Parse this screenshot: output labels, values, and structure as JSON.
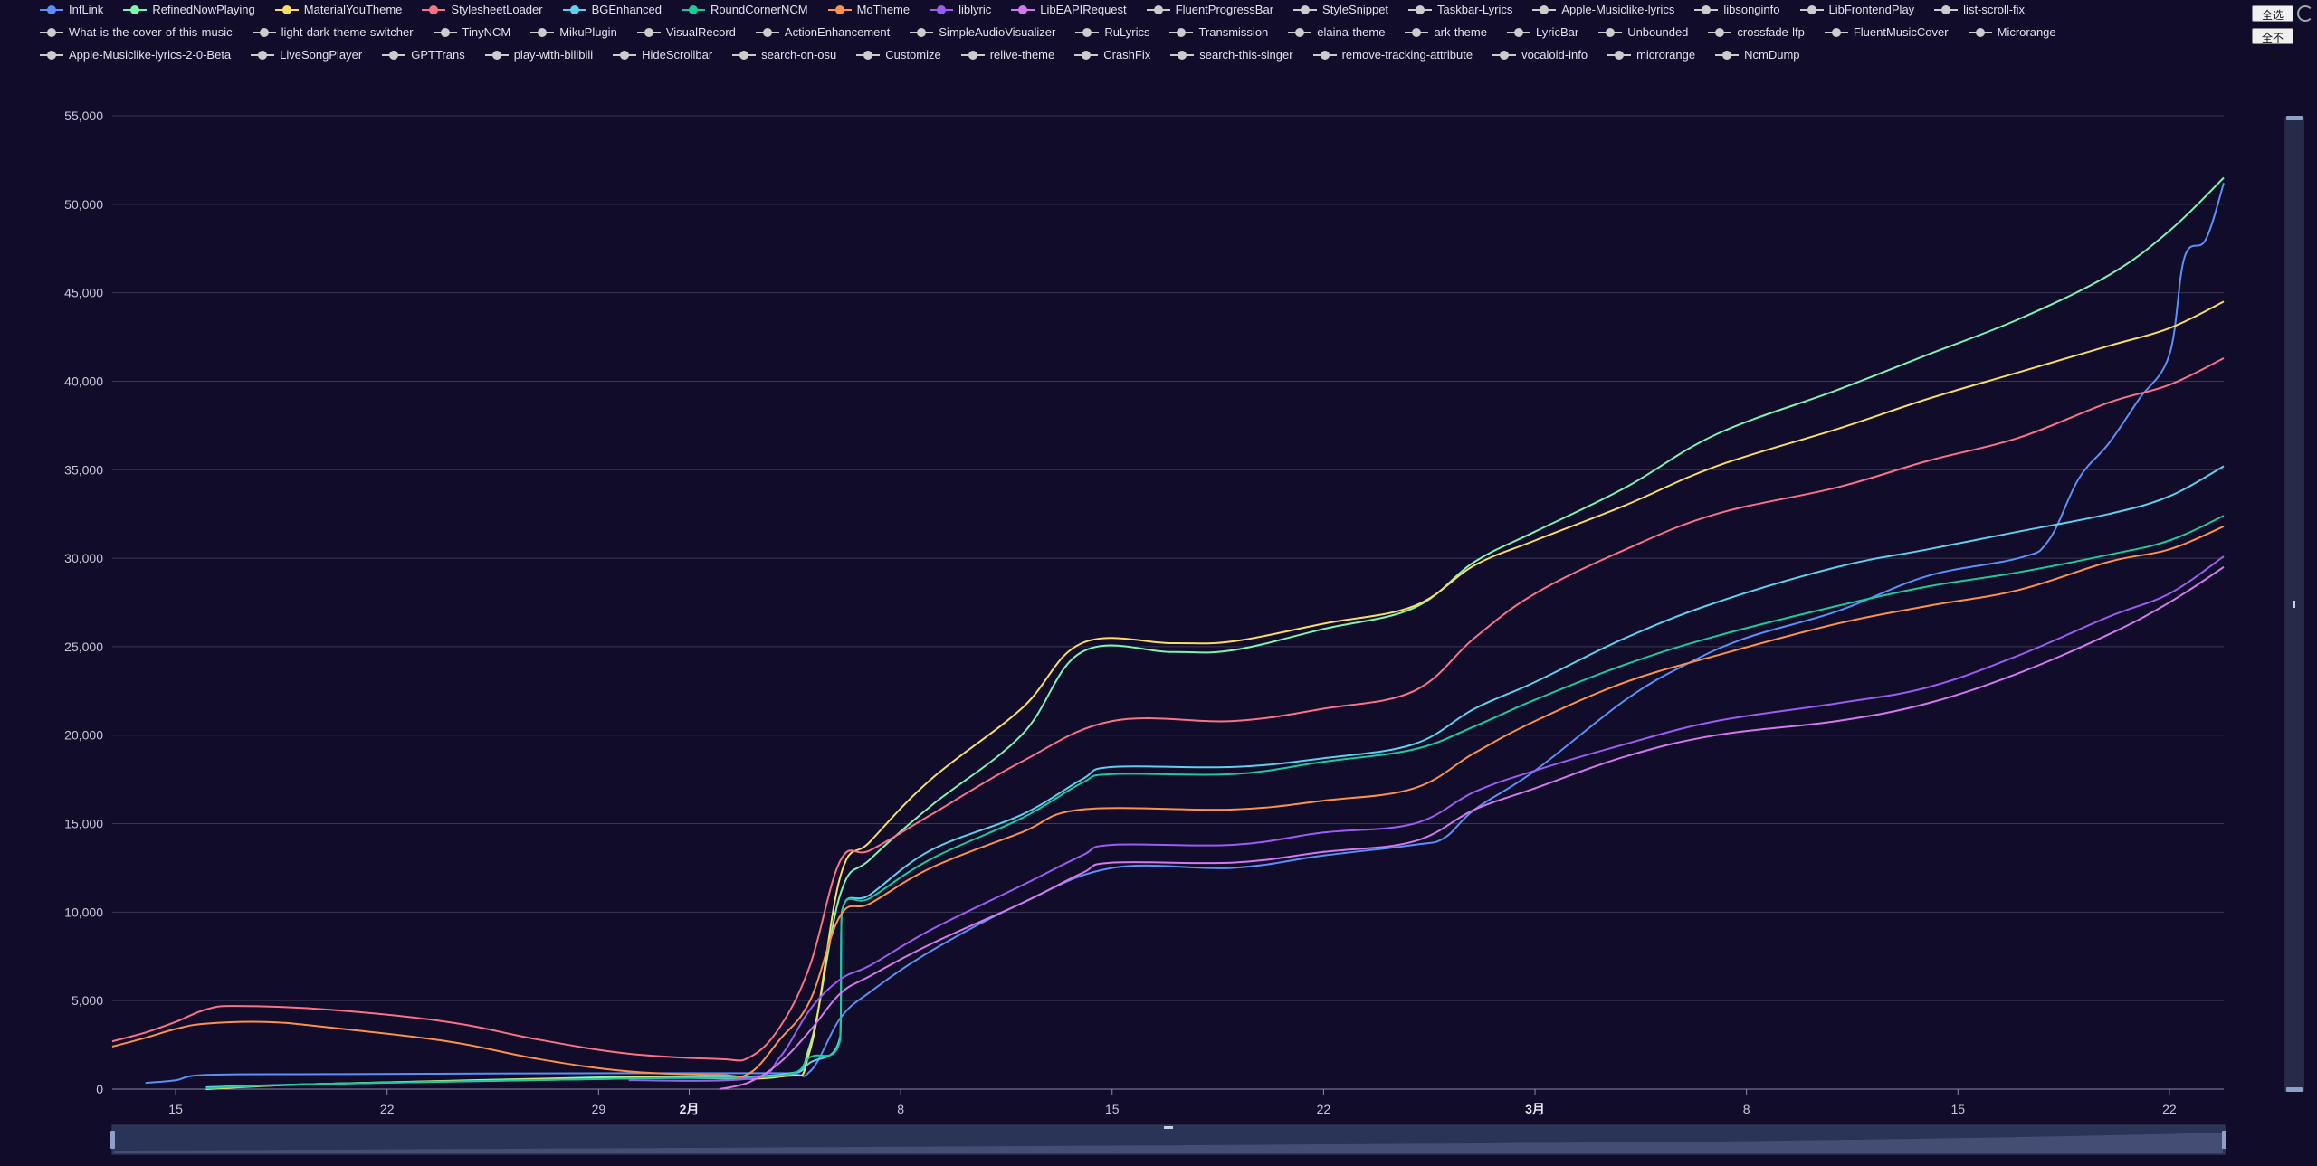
{
  "controls": {
    "select_all": "全选",
    "select_none": "全不选"
  },
  "legend": [
    {
      "name": "InfLink",
      "color": "#5b8ff9"
    },
    {
      "name": "RefinedNowPlaying",
      "color": "#7ef4b0"
    },
    {
      "name": "MaterialYouTheme",
      "color": "#f8dc65"
    },
    {
      "name": "StylesheetLoader",
      "color": "#fb7185"
    },
    {
      "name": "BGEnhanced",
      "color": "#60cfee"
    },
    {
      "name": "RoundCornerNCM",
      "color": "#1ec99b"
    },
    {
      "name": "MoTheme",
      "color": "#fd9149"
    },
    {
      "name": "liblyric",
      "color": "#9b5cf2"
    },
    {
      "name": "LibEAPIRequest",
      "color": "#d478f0"
    },
    {
      "name": "FluentProgressBar",
      "color": "#cccccc"
    },
    {
      "name": "StyleSnippet",
      "color": "#cccccc"
    },
    {
      "name": "Taskbar-Lyrics",
      "color": "#cccccc"
    },
    {
      "name": "Apple-Musiclike-lyrics",
      "color": "#cccccc"
    },
    {
      "name": "libsonginfo",
      "color": "#cccccc"
    },
    {
      "name": "LibFrontendPlay",
      "color": "#cccccc"
    },
    {
      "name": "list-scroll-fix",
      "color": "#cccccc"
    },
    {
      "name": "What-is-the-cover-of-this-music",
      "color": "#cccccc"
    },
    {
      "name": "light-dark-theme-switcher",
      "color": "#cccccc"
    },
    {
      "name": "TinyNCM",
      "color": "#cccccc"
    },
    {
      "name": "MikuPlugin",
      "color": "#cccccc"
    },
    {
      "name": "VisualRecord",
      "color": "#cccccc"
    },
    {
      "name": "ActionEnhancement",
      "color": "#cccccc"
    },
    {
      "name": "SimpleAudioVisualizer",
      "color": "#cccccc"
    },
    {
      "name": "RuLyrics",
      "color": "#cccccc"
    },
    {
      "name": "Transmission",
      "color": "#cccccc"
    },
    {
      "name": "elaina-theme",
      "color": "#cccccc"
    },
    {
      "name": "ark-theme",
      "color": "#cccccc"
    },
    {
      "name": "LyricBar",
      "color": "#cccccc"
    },
    {
      "name": "Unbounded",
      "color": "#cccccc"
    },
    {
      "name": "crossfade-lfp",
      "color": "#cccccc"
    },
    {
      "name": "FluentMusicCover",
      "color": "#cccccc"
    },
    {
      "name": "Microrange",
      "color": "#cccccc"
    },
    {
      "name": "Apple-Musiclike-lyrics-2-0-Beta",
      "color": "#cccccc"
    },
    {
      "name": "LiveSongPlayer",
      "color": "#cccccc"
    },
    {
      "name": "GPTTrans",
      "color": "#cccccc"
    },
    {
      "name": "play-with-bilibili",
      "color": "#cccccc"
    },
    {
      "name": "HideScrollbar",
      "color": "#cccccc"
    },
    {
      "name": "search-on-osu",
      "color": "#cccccc"
    },
    {
      "name": "Customize",
      "color": "#cccccc"
    },
    {
      "name": "relive-theme",
      "color": "#cccccc"
    },
    {
      "name": "CrashFix",
      "color": "#cccccc"
    },
    {
      "name": "search-this-singer",
      "color": "#cccccc"
    },
    {
      "name": "remove-tracking-attribute",
      "color": "#cccccc"
    },
    {
      "name": "vocaloid-info",
      "color": "#cccccc"
    },
    {
      "name": "microrange",
      "color": "#cccccc"
    },
    {
      "name": "NcmDump",
      "color": "#cccccc"
    }
  ],
  "chart_data": {
    "type": "line",
    "title": "",
    "xlabel": "",
    "ylabel": "",
    "x_ticks": [
      {
        "label": "15",
        "day": 15,
        "bold": false
      },
      {
        "label": "22",
        "day": 22,
        "bold": false
      },
      {
        "label": "29",
        "day": 29,
        "bold": false
      },
      {
        "label": "2月",
        "day": 32,
        "bold": true
      },
      {
        "label": "8",
        "day": 39,
        "bold": false
      },
      {
        "label": "15",
        "day": 46,
        "bold": false
      },
      {
        "label": "22",
        "day": 53,
        "bold": false
      },
      {
        "label": "3月",
        "day": 60,
        "bold": true
      },
      {
        "label": "8",
        "day": 67,
        "bold": false
      },
      {
        "label": "15",
        "day": 74,
        "bold": false
      },
      {
        "label": "22",
        "day": 81,
        "bold": false
      }
    ],
    "xlim": [
      12.9,
      82.8
    ],
    "ylim": [
      0,
      55000
    ],
    "y_ticks": [
      "0",
      "5,000",
      "10,000",
      "15,000",
      "20,000",
      "25,000",
      "30,000",
      "35,000",
      "40,000",
      "45,000",
      "50,000",
      "55,000"
    ],
    "grid": true,
    "legend_position": "top",
    "series": [
      {
        "name": "InfLink",
        "color": "#5b8ff9",
        "points": [
          [
            14,
            350
          ],
          [
            15,
            500
          ],
          [
            16,
            800
          ],
          [
            20,
            850
          ],
          [
            30,
            900
          ],
          [
            35,
            900
          ],
          [
            36,
            1000
          ],
          [
            37,
            4000
          ],
          [
            38,
            5500
          ],
          [
            40,
            7800
          ],
          [
            43,
            10500
          ],
          [
            46,
            12500
          ],
          [
            50,
            12500
          ],
          [
            53,
            13200
          ],
          [
            56,
            13800
          ],
          [
            57,
            14200
          ],
          [
            58,
            15800
          ],
          [
            60,
            18000
          ],
          [
            63,
            22000
          ],
          [
            65,
            24000
          ],
          [
            67,
            25500
          ],
          [
            70,
            27000
          ],
          [
            73,
            29000
          ],
          [
            76,
            30000
          ],
          [
            77,
            31000
          ],
          [
            78,
            34500
          ],
          [
            79,
            36500
          ],
          [
            80,
            39000
          ],
          [
            81,
            41500
          ],
          [
            81.5,
            47000
          ],
          [
            82.2,
            48000
          ],
          [
            82.8,
            51200
          ]
        ]
      },
      {
        "name": "RefinedNowPlaying",
        "color": "#7ef4b0",
        "points": [
          [
            16,
            100
          ],
          [
            20,
            300
          ],
          [
            30,
            700
          ],
          [
            35,
            800
          ],
          [
            36,
            2500
          ],
          [
            37,
            11000
          ],
          [
            38,
            13000
          ],
          [
            40,
            16000
          ],
          [
            43,
            20000
          ],
          [
            45,
            24700
          ],
          [
            48,
            24700
          ],
          [
            50,
            24800
          ],
          [
            53,
            26000
          ],
          [
            56,
            27200
          ],
          [
            58,
            29800
          ],
          [
            60,
            31500
          ],
          [
            63,
            34000
          ],
          [
            66,
            37000
          ],
          [
            70,
            39500
          ],
          [
            73,
            41500
          ],
          [
            76,
            43500
          ],
          [
            79,
            46000
          ],
          [
            81,
            48500
          ],
          [
            82.8,
            51500
          ]
        ]
      },
      {
        "name": "MaterialYouTheme",
        "color": "#f8dc65",
        "points": [
          [
            16,
            0
          ],
          [
            20,
            300
          ],
          [
            30,
            650
          ],
          [
            35,
            700
          ],
          [
            36,
            2200
          ],
          [
            37,
            12000
          ],
          [
            38,
            14000
          ],
          [
            40,
            17500
          ],
          [
            43,
            21500
          ],
          [
            45,
            25200
          ],
          [
            48,
            25200
          ],
          [
            50,
            25300
          ],
          [
            53,
            26300
          ],
          [
            56,
            27300
          ],
          [
            58,
            29600
          ],
          [
            60,
            31000
          ],
          [
            63,
            33000
          ],
          [
            66,
            35200
          ],
          [
            70,
            37300
          ],
          [
            73,
            39000
          ],
          [
            76,
            40500
          ],
          [
            79,
            42000
          ],
          [
            81,
            43000
          ],
          [
            82.8,
            44500
          ]
        ]
      },
      {
        "name": "StylesheetLoader",
        "color": "#fb7185",
        "points": [
          [
            12.9,
            2700
          ],
          [
            14,
            3200
          ],
          [
            15,
            3800
          ],
          [
            16,
            4500
          ],
          [
            17,
            4700
          ],
          [
            20,
            4500
          ],
          [
            24,
            3800
          ],
          [
            27,
            2800
          ],
          [
            30,
            2000
          ],
          [
            33,
            1700
          ],
          [
            34,
            1800
          ],
          [
            35,
            3500
          ],
          [
            36,
            7000
          ],
          [
            37,
            12900
          ],
          [
            38,
            13500
          ],
          [
            40,
            15500
          ],
          [
            43,
            18500
          ],
          [
            46,
            20800
          ],
          [
            50,
            20800
          ],
          [
            53,
            21500
          ],
          [
            56,
            22500
          ],
          [
            58,
            25500
          ],
          [
            60,
            28000
          ],
          [
            63,
            30500
          ],
          [
            66,
            32500
          ],
          [
            70,
            34000
          ],
          [
            73,
            35500
          ],
          [
            76,
            36800
          ],
          [
            79,
            38800
          ],
          [
            81,
            39800
          ],
          [
            82.8,
            41300
          ]
        ]
      },
      {
        "name": "BGEnhanced",
        "color": "#60cfee",
        "points": [
          [
            16,
            100
          ],
          [
            20,
            300
          ],
          [
            30,
            600
          ],
          [
            35,
            800
          ],
          [
            36,
            1500
          ],
          [
            37,
            3000
          ],
          [
            37.05,
            10000
          ],
          [
            38,
            11000
          ],
          [
            40,
            13500
          ],
          [
            43,
            15500
          ],
          [
            45,
            17500
          ],
          [
            46,
            18200
          ],
          [
            50,
            18200
          ],
          [
            53,
            18700
          ],
          [
            56,
            19500
          ],
          [
            58,
            21500
          ],
          [
            60,
            23000
          ],
          [
            63,
            25500
          ],
          [
            66,
            27500
          ],
          [
            70,
            29500
          ],
          [
            73,
            30500
          ],
          [
            76,
            31500
          ],
          [
            79,
            32500
          ],
          [
            81,
            33500
          ],
          [
            82.8,
            35200
          ]
        ]
      },
      {
        "name": "RoundCornerNCM",
        "color": "#1ec99b",
        "points": [
          [
            16,
            50
          ],
          [
            20,
            300
          ],
          [
            30,
            600
          ],
          [
            35,
            750
          ],
          [
            36,
            1800
          ],
          [
            37,
            2800
          ],
          [
            37.05,
            10000
          ],
          [
            38,
            10800
          ],
          [
            40,
            13000
          ],
          [
            43,
            15300
          ],
          [
            45,
            17300
          ],
          [
            46,
            17800
          ],
          [
            50,
            17800
          ],
          [
            53,
            18500
          ],
          [
            56,
            19200
          ],
          [
            58,
            20500
          ],
          [
            60,
            22000
          ],
          [
            63,
            24000
          ],
          [
            66,
            25600
          ],
          [
            70,
            27300
          ],
          [
            73,
            28400
          ],
          [
            76,
            29200
          ],
          [
            79,
            30200
          ],
          [
            81,
            31000
          ],
          [
            82.8,
            32400
          ]
        ]
      },
      {
        "name": "MoTheme",
        "color": "#fd9149",
        "points": [
          [
            12.9,
            2400
          ],
          [
            14,
            2900
          ],
          [
            15,
            3400
          ],
          [
            16,
            3700
          ],
          [
            18,
            3800
          ],
          [
            20,
            3500
          ],
          [
            24,
            2700
          ],
          [
            27,
            1700
          ],
          [
            30,
            1000
          ],
          [
            33,
            800
          ],
          [
            34,
            900
          ],
          [
            35,
            2800
          ],
          [
            36,
            5000
          ],
          [
            37,
            9800
          ],
          [
            38,
            10500
          ],
          [
            40,
            12500
          ],
          [
            43,
            14500
          ],
          [
            45,
            15800
          ],
          [
            50,
            15800
          ],
          [
            53,
            16300
          ],
          [
            56,
            17000
          ],
          [
            58,
            19000
          ],
          [
            60,
            20800
          ],
          [
            63,
            23000
          ],
          [
            66,
            24500
          ],
          [
            70,
            26300
          ],
          [
            73,
            27300
          ],
          [
            76,
            28200
          ],
          [
            79,
            29800
          ],
          [
            81,
            30500
          ],
          [
            82.8,
            31800
          ]
        ]
      },
      {
        "name": "liblyric",
        "color": "#9b5cf2",
        "points": [
          [
            30,
            500
          ],
          [
            34,
            600
          ],
          [
            35,
            1800
          ],
          [
            36,
            4500
          ],
          [
            37,
            6200
          ],
          [
            38,
            7000
          ],
          [
            40,
            9000
          ],
          [
            43,
            11500
          ],
          [
            45,
            13200
          ],
          [
            46,
            13800
          ],
          [
            50,
            13800
          ],
          [
            53,
            14500
          ],
          [
            56,
            15000
          ],
          [
            58,
            16800
          ],
          [
            60,
            18000
          ],
          [
            63,
            19500
          ],
          [
            66,
            20800
          ],
          [
            70,
            21800
          ],
          [
            73,
            22700
          ],
          [
            76,
            24500
          ],
          [
            79,
            26700
          ],
          [
            81,
            28000
          ],
          [
            82.8,
            30100
          ]
        ]
      },
      {
        "name": "LibEAPIRequest",
        "color": "#d478f0",
        "points": [
          [
            33,
            0
          ],
          [
            34,
            400
          ],
          [
            35,
            1500
          ],
          [
            36,
            3300
          ],
          [
            37,
            5400
          ],
          [
            38,
            6400
          ],
          [
            40,
            8200
          ],
          [
            43,
            10500
          ],
          [
            45,
            12200
          ],
          [
            46,
            12800
          ],
          [
            50,
            12800
          ],
          [
            53,
            13400
          ],
          [
            56,
            14000
          ],
          [
            58,
            15800
          ],
          [
            60,
            17000
          ],
          [
            63,
            18800
          ],
          [
            66,
            20000
          ],
          [
            70,
            20800
          ],
          [
            73,
            21800
          ],
          [
            76,
            23500
          ],
          [
            79,
            25700
          ],
          [
            81,
            27500
          ],
          [
            82.8,
            29500
          ]
        ]
      }
    ]
  }
}
